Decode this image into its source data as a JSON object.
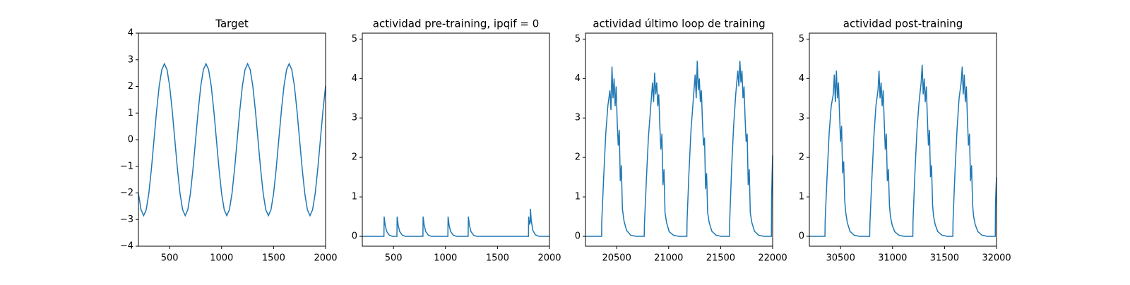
{
  "chart_data": [
    {
      "type": "line",
      "title": "Target",
      "color": "#1f77b4",
      "x": [
        200,
        225,
        250,
        275,
        300,
        325,
        350,
        375,
        400,
        425,
        450,
        475,
        500,
        525,
        550,
        575,
        600,
        625,
        650,
        675,
        700,
        725,
        750,
        775,
        800,
        825,
        850,
        875,
        900,
        925,
        950,
        975,
        1000,
        1025,
        1050,
        1075,
        1100,
        1125,
        1150,
        1175,
        1200,
        1225,
        1250,
        1275,
        1300,
        1325,
        1350,
        1375,
        1400,
        1425,
        1450,
        1475,
        1500,
        1525,
        1550,
        1575,
        1600,
        1625,
        1650,
        1675,
        1700,
        1725,
        1750,
        1775,
        1800,
        1825,
        1850,
        1875,
        1900,
        1925,
        1950,
        1975,
        2000
      ],
      "values": [
        -2.02,
        -2.63,
        -2.85,
        -2.63,
        -2.02,
        -1.09,
        0,
        1.09,
        2.02,
        2.63,
        2.85,
        2.63,
        2.02,
        1.09,
        0,
        -1.09,
        -2.02,
        -2.63,
        -2.85,
        -2.63,
        -2.02,
        -1.09,
        0,
        1.09,
        2.02,
        2.63,
        2.85,
        2.63,
        2.02,
        1.09,
        0,
        -1.09,
        -2.02,
        -2.63,
        -2.85,
        -2.63,
        -2.02,
        -1.09,
        0,
        1.09,
        2.02,
        2.63,
        2.85,
        2.63,
        2.02,
        1.09,
        0,
        -1.09,
        -2.02,
        -2.63,
        -2.85,
        -2.63,
        -2.02,
        -1.09,
        0,
        1.09,
        2.02,
        2.63,
        2.85,
        2.63,
        2.02,
        1.09,
        0,
        -1.09,
        -2.02,
        -2.63,
        -2.85,
        -2.63,
        -2.02,
        -1.09,
        0,
        1.09,
        2.02
      ],
      "xlim": [
        200,
        2000
      ],
      "ylim": [
        -4,
        4
      ],
      "xticks": [
        500,
        1000,
        1500,
        2000
      ],
      "yticks": [
        {
          "value": -4,
          "label": "−4"
        },
        {
          "value": -3,
          "label": "−3"
        },
        {
          "value": -2,
          "label": "−2"
        },
        {
          "value": -1,
          "label": "−1"
        },
        0,
        1,
        2,
        3,
        4
      ]
    },
    {
      "type": "line",
      "title": "actividad pre-training, ipqif = 0",
      "color": "#1f77b4",
      "x": [
        200,
        408,
        410,
        420,
        435,
        460,
        490,
        533,
        535,
        545,
        560,
        585,
        615,
        783,
        785,
        795,
        810,
        835,
        865,
        1023,
        1025,
        1035,
        1050,
        1075,
        1105,
        1218,
        1220,
        1230,
        1245,
        1270,
        1300,
        1798,
        1800,
        1808,
        1815,
        1817,
        1825,
        1840,
        1865,
        1900,
        2000
      ],
      "values": [
        0,
        0,
        0.5,
        0.28,
        0.12,
        0.03,
        0,
        0,
        0.5,
        0.28,
        0.12,
        0.03,
        0,
        0,
        0.5,
        0.28,
        0.12,
        0.03,
        0,
        0,
        0.5,
        0.28,
        0.12,
        0.03,
        0,
        0,
        0.5,
        0.28,
        0.12,
        0.03,
        0,
        0,
        0.5,
        0.3,
        0.35,
        0.7,
        0.4,
        0.15,
        0.04,
        0,
        0
      ],
      "xlim": [
        200,
        2000
      ],
      "ylim": [
        -0.25,
        5.15
      ],
      "xticks": [
        500,
        1000,
        1500,
        2000
      ],
      "yticks": [
        0,
        1,
        2,
        3,
        4,
        5
      ]
    },
    {
      "type": "line",
      "title": "actividad último loop de training",
      "color": "#1f77b4",
      "x": [
        20200,
        20355,
        20357,
        20375,
        20395,
        20415,
        20435,
        20445,
        20455,
        20465,
        20475,
        20485,
        20495,
        20505,
        20515,
        20525,
        20535,
        20545,
        20555,
        20570,
        20595,
        20635,
        20685,
        20765,
        20767,
        20785,
        20805,
        20825,
        20845,
        20855,
        20865,
        20875,
        20885,
        20895,
        20905,
        20915,
        20925,
        20935,
        20945,
        20955,
        20965,
        20980,
        21005,
        21045,
        21095,
        21175,
        21177,
        21195,
        21215,
        21235,
        21255,
        21265,
        21275,
        21285,
        21295,
        21305,
        21315,
        21325,
        21335,
        21345,
        21355,
        21365,
        21375,
        21390,
        21415,
        21455,
        21505,
        21585,
        21587,
        21605,
        21625,
        21645,
        21665,
        21675,
        21685,
        21695,
        21705,
        21715,
        21725,
        21735,
        21745,
        21755,
        21765,
        21775,
        21785,
        21800,
        21825,
        21865,
        21915,
        21988,
        21990,
        21995,
        22000
      ],
      "values": [
        0,
        0,
        0.4,
        1.5,
        2.6,
        3.3,
        3.7,
        3.2,
        4.3,
        3.5,
        4.0,
        3.3,
        3.8,
        2.9,
        2.3,
        2.7,
        1.4,
        1.8,
        0.7,
        0.4,
        0.15,
        0.03,
        0,
        0,
        0.3,
        1.4,
        2.5,
        3.2,
        3.9,
        3.4,
        4.15,
        3.6,
        3.9,
        3.3,
        3.6,
        2.8,
        2.2,
        2.6,
        1.3,
        1.7,
        0.6,
        0.35,
        0.12,
        0.03,
        0,
        0,
        0.4,
        1.6,
        2.7,
        3.4,
        4.1,
        3.5,
        4.45,
        3.7,
        4.0,
        3.4,
        3.7,
        2.9,
        2.3,
        2.5,
        1.2,
        1.6,
        0.6,
        0.35,
        0.13,
        0.03,
        0,
        0,
        0.4,
        1.7,
        2.8,
        3.6,
        4.2,
        3.8,
        4.45,
        3.9,
        4.2,
        3.5,
        3.8,
        3.0,
        2.4,
        2.6,
        1.3,
        1.7,
        0.6,
        0.35,
        0.13,
        0.03,
        0,
        0,
        1.0,
        1.6,
        2.05
      ],
      "xlim": [
        20200,
        22000
      ],
      "ylim": [
        -0.25,
        5.15
      ],
      "xticks": [
        20500,
        21000,
        21500,
        22000
      ],
      "yticks": [
        0,
        1,
        2,
        3,
        4,
        5
      ]
    },
    {
      "type": "line",
      "title": "actividad post-training",
      "color": "#1f77b4",
      "x": [
        30200,
        30350,
        30352,
        30370,
        30390,
        30410,
        30430,
        30440,
        30450,
        30460,
        30470,
        30480,
        30490,
        30500,
        30510,
        30520,
        30530,
        30540,
        30550,
        30565,
        30590,
        30630,
        30680,
        30780,
        30782,
        30800,
        30820,
        30840,
        30860,
        30870,
        30880,
        30890,
        30900,
        30910,
        30920,
        30930,
        30940,
        30950,
        30960,
        30970,
        30980,
        30995,
        31020,
        31060,
        31110,
        31195,
        31197,
        31215,
        31235,
        31255,
        31275,
        31285,
        31295,
        31305,
        31315,
        31325,
        31335,
        31345,
        31355,
        31365,
        31375,
        31385,
        31395,
        31410,
        31435,
        31475,
        31525,
        31580,
        31582,
        31600,
        31620,
        31640,
        31660,
        31670,
        31680,
        31690,
        31700,
        31710,
        31720,
        31730,
        31740,
        31750,
        31760,
        31770,
        31780,
        31795,
        31820,
        31860,
        31910,
        31988,
        31990,
        31995,
        32000
      ],
      "values": [
        0,
        0,
        0.4,
        1.5,
        2.6,
        3.3,
        3.6,
        4.1,
        3.4,
        4.2,
        3.5,
        3.9,
        3.1,
        2.4,
        2.8,
        1.6,
        1.9,
        0.9,
        0.6,
        0.35,
        0.13,
        0.03,
        0,
        0,
        0.3,
        1.4,
        2.5,
        3.3,
        3.7,
        4.2,
        3.5,
        3.9,
        3.3,
        3.7,
        2.9,
        2.2,
        2.6,
        1.4,
        1.7,
        0.8,
        0.5,
        0.3,
        0.12,
        0.03,
        0,
        0,
        0.4,
        1.6,
        2.7,
        3.4,
        3.9,
        4.35,
        3.6,
        4.0,
        3.4,
        3.8,
        3.0,
        2.3,
        2.7,
        1.5,
        1.8,
        0.8,
        0.5,
        0.3,
        0.12,
        0.03,
        0,
        0,
        0.4,
        1.6,
        2.7,
        3.5,
        3.9,
        4.3,
        3.6,
        4.1,
        3.4,
        3.8,
        3.0,
        2.3,
        2.6,
        1.4,
        1.8,
        0.8,
        0.5,
        0.3,
        0.12,
        0.03,
        0,
        0,
        0.8,
        1.2,
        1.5
      ],
      "xlim": [
        30200,
        32000
      ],
      "ylim": [
        -0.25,
        5.15
      ],
      "xticks": [
        30500,
        31000,
        31500,
        32000
      ],
      "yticks": [
        0,
        1,
        2,
        3,
        4,
        5
      ]
    }
  ]
}
